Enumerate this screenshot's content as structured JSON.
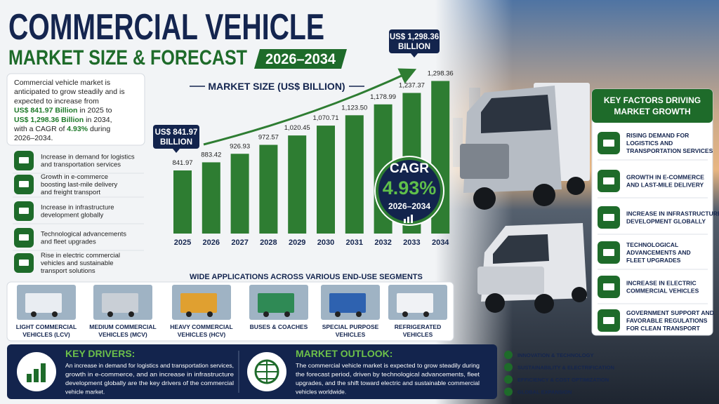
{
  "header": {
    "title": "COMMERCIAL VEHICLE",
    "subtitle": "MARKET SIZE & FORECAST",
    "period": "2026–2034"
  },
  "intro": [
    [
      {
        "text": "Commercial vehicle market is"
      }
    ],
    [
      {
        "text": "anticipated to grow steadily and is"
      }
    ],
    [
      {
        "text": "expected to increase from"
      }
    ],
    [
      {
        "text": "US$ 841.97 Billion",
        "highlight": true
      },
      {
        "text": " in 2025 to"
      }
    ],
    [
      {
        "text": "US$ 1,298.36 Billion",
        "highlight": true
      },
      {
        "text": " in 2034,"
      }
    ],
    [
      {
        "text": "with a CAGR of "
      },
      {
        "text": "4.93%",
        "highlight": true
      },
      {
        "text": " during"
      }
    ],
    [
      {
        "text": "2026–2034."
      }
    ]
  ],
  "drivers_list": [
    [
      "Increase in demand for logistics",
      "and transportation services"
    ],
    [
      "Growth in e-commerce",
      "boosting last-mile delivery",
      "and freight transport"
    ],
    [
      "Increase in infrastructure",
      "development globally"
    ],
    [
      "Technological advancements",
      "and fleet upgrades"
    ],
    [
      "Rise in electric commercial",
      "vehicles and sustainable",
      "transport solutions"
    ]
  ],
  "chart_data": {
    "type": "bar",
    "title": "MARKET SIZE (US$ BILLION)",
    "categories": [
      "2025",
      "2026",
      "2027",
      "2028",
      "2029",
      "2030",
      "2031",
      "2032",
      "2033",
      "2034"
    ],
    "values": [
      841.97,
      883.42,
      926.93,
      972.57,
      1020.45,
      1070.71,
      1123.5,
      1178.99,
      1237.37,
      1298.36
    ],
    "value_labels": [
      "841.97",
      "883.42",
      "926.93",
      "972.57",
      "1,020.45",
      "1,070.71",
      "1,123.50",
      "1,178.99",
      "1,237.37",
      "1,298.36"
    ],
    "color": "#2e7d32",
    "ylim": [
      520,
      1300
    ],
    "annotations": [
      {
        "lines": [
          "US$ 841.97",
          "BILLION"
        ]
      },
      {
        "lines": [
          "US$ 1,298.36",
          "BILLION"
        ]
      }
    ]
  },
  "cagr": {
    "label": "CAGR",
    "value": "4.93%",
    "period": "2026–2034"
  },
  "key_factors": {
    "title": [
      "KEY FACTORS DRIVING",
      "MARKET GROWTH"
    ],
    "items": [
      [
        "RISING DEMAND FOR",
        "LOGISTICS AND",
        "TRANSPORTATION SERVICES"
      ],
      [
        "GROWTH IN E-COMMERCE",
        "AND LAST-MILE DELIVERY"
      ],
      [
        "INCREASE IN INFRASTRUCTURE",
        "DEVELOPMENT GLOBALLY"
      ],
      [
        "TECHNOLOGICAL",
        "ADVANCEMENTS AND",
        "FLEET UPGRADES"
      ],
      [
        "INCREASE IN ELECTRIC",
        "COMMERCIAL VEHICLES"
      ],
      [
        "GOVERNMENT SUPPORT AND",
        "FAVORABLE REGULATIONS",
        "FOR CLEAN TRANSPORT"
      ]
    ]
  },
  "applications": {
    "title": "WIDE APPLICATIONS ACROSS VARIOUS END-USE SEGMENTS",
    "items": [
      [
        "LIGHT COMMERCIAL",
        "VEHICLES (LCV)"
      ],
      [
        "MEDIUM COMMERCIAL",
        "VEHICLES (MCV)"
      ],
      [
        "HEAVY COMMERCIAL",
        "VEHICLES (HCV)"
      ],
      [
        "BUSES & COACHES"
      ],
      [
        "SPECIAL PURPOSE",
        "VEHICLES"
      ],
      [
        "REFRIGERATED",
        "VEHICLES"
      ]
    ]
  },
  "key_drivers": {
    "title": "KEY DRIVERS:",
    "lines": [
      "An increase in demand for logistics and transportation services,",
      "growth in e-commerce, and an increase in infrastructure",
      "development globally are the key drivers of the commercial",
      "vehicle market."
    ]
  },
  "market_outlook": {
    "title": "MARKET OUTLOOK:",
    "lines": [
      "The commercial vehicle market is expected to grow steadily during",
      "the forecast period, driven by technological advancements, fleet",
      "upgrades, and the shift toward electric and sustainable commercial",
      "vehicles worldwide."
    ]
  },
  "themes": [
    "INNOVATION & TECHNOLOGY",
    "SUSTAINABILITY & ELECTRIFICATION",
    "EFFICIENCY & COST OPTIMIZATION",
    "GLOBAL EXPANSION"
  ]
}
